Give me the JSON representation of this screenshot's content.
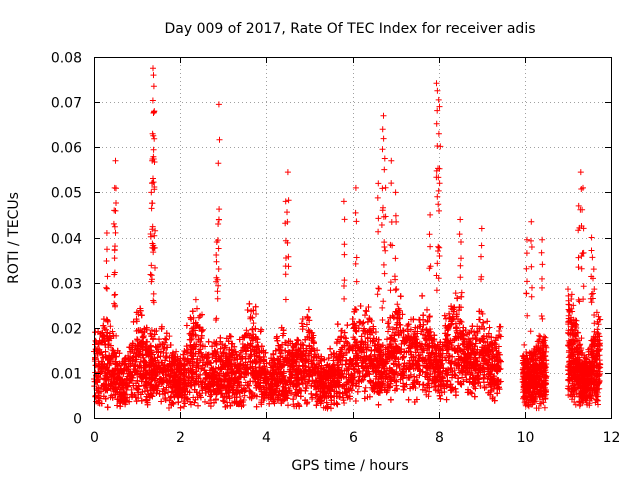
{
  "chart_data": {
    "type": "scatter",
    "title": "Day 009 of 2017, Rate Of TEC Index for receiver adis",
    "xlabel": "GPS time / hours",
    "ylabel": "ROTI / TECUs",
    "xlim": [
      0,
      12
    ],
    "ylim": [
      0,
      0.08
    ],
    "x_ticks": [
      0,
      2,
      4,
      6,
      8,
      10,
      12
    ],
    "y_ticks": [
      0,
      0.01,
      0.02,
      0.03,
      0.04,
      0.05,
      0.06,
      0.07,
      0.08
    ],
    "x_tick_labels": [
      "0",
      "2",
      "4",
      "6",
      "8",
      "10",
      "12"
    ],
    "y_tick_labels": [
      "0",
      "0.01",
      "0.02",
      "0.03",
      "0.04",
      "0.05",
      "0.06",
      "0.07",
      "0.08"
    ],
    "grid": true,
    "marker": "+",
    "color": "#ff0000",
    "series": [
      {
        "name": "ROTI",
        "segments": [
          {
            "x_start": 0.0,
            "x_end": 9.45,
            "base": 0.008,
            "spread": 0.018
          },
          {
            "x_start": 9.95,
            "x_end": 10.5,
            "base": 0.008,
            "spread": 0.016
          },
          {
            "x_start": 11.0,
            "x_end": 11.75,
            "base": 0.008,
            "spread": 0.022
          }
        ],
        "peaks": [
          {
            "x": 0.3,
            "y": 0.041
          },
          {
            "x": 0.5,
            "y": 0.057
          },
          {
            "x": 0.48,
            "y": 0.051
          },
          {
            "x": 0.47,
            "y": 0.046
          },
          {
            "x": 1.37,
            "y": 0.0775
          },
          {
            "x": 1.38,
            "y": 0.076
          },
          {
            "x": 1.39,
            "y": 0.0735
          },
          {
            "x": 1.4,
            "y": 0.068
          },
          {
            "x": 1.36,
            "y": 0.063
          },
          {
            "x": 1.35,
            "y": 0.057
          },
          {
            "x": 1.33,
            "y": 0.05
          },
          {
            "x": 2.9,
            "y": 0.0695
          },
          {
            "x": 2.88,
            "y": 0.043
          },
          {
            "x": 2.85,
            "y": 0.039
          },
          {
            "x": 4.5,
            "y": 0.0545
          },
          {
            "x": 4.45,
            "y": 0.048
          },
          {
            "x": 5.8,
            "y": 0.048
          },
          {
            "x": 6.08,
            "y": 0.051
          },
          {
            "x": 6.6,
            "y": 0.052
          },
          {
            "x": 6.72,
            "y": 0.067
          },
          {
            "x": 6.7,
            "y": 0.064
          },
          {
            "x": 6.75,
            "y": 0.0575
          },
          {
            "x": 6.9,
            "y": 0.057
          },
          {
            "x": 7.0,
            "y": 0.05
          },
          {
            "x": 7.8,
            "y": 0.045
          },
          {
            "x": 7.95,
            "y": 0.0742
          },
          {
            "x": 7.97,
            "y": 0.0725
          },
          {
            "x": 8.0,
            "y": 0.0705
          },
          {
            "x": 8.02,
            "y": 0.069
          },
          {
            "x": 8.5,
            "y": 0.044
          },
          {
            "x": 9.0,
            "y": 0.042
          },
          {
            "x": 10.15,
            "y": 0.0435
          },
          {
            "x": 10.05,
            "y": 0.0395
          },
          {
            "x": 10.4,
            "y": 0.0395
          },
          {
            "x": 11.3,
            "y": 0.0545
          },
          {
            "x": 11.35,
            "y": 0.051
          },
          {
            "x": 11.25,
            "y": 0.047
          },
          {
            "x": 11.55,
            "y": 0.04
          },
          {
            "x": 11.6,
            "y": 0.033
          }
        ]
      }
    ]
  }
}
